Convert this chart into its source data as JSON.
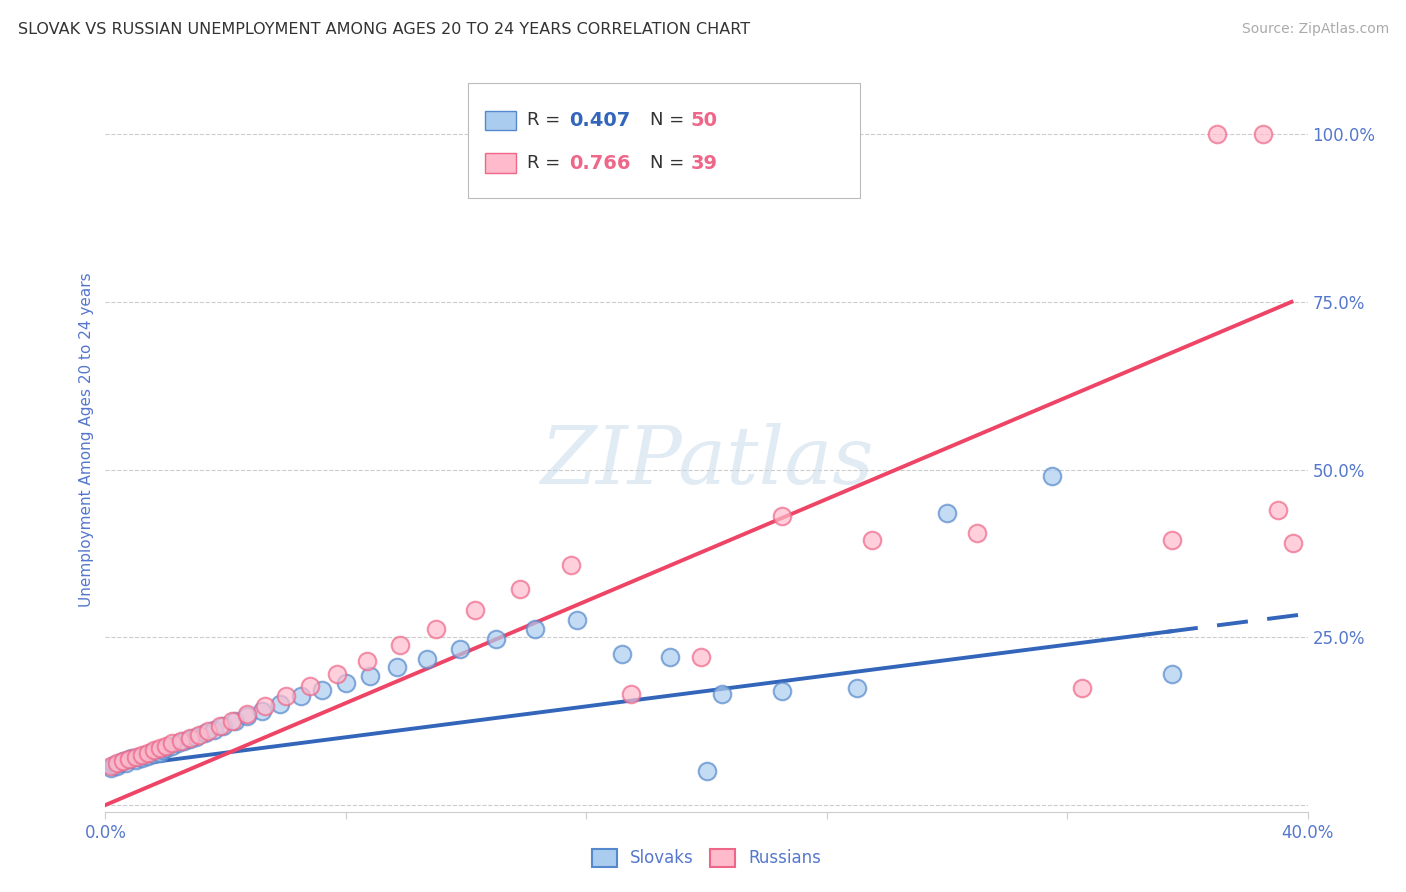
{
  "title": "SLOVAK VS RUSSIAN UNEMPLOYMENT AMONG AGES 20 TO 24 YEARS CORRELATION CHART",
  "source": "Source: ZipAtlas.com",
  "ylabel": "Unemployment Among Ages 20 to 24 years",
  "xlim": [
    0.0,
    0.4
  ],
  "ylim": [
    -0.01,
    1.1
  ],
  "xticks": [
    0.0,
    0.08,
    0.16,
    0.24,
    0.32,
    0.4
  ],
  "yticks": [
    0.0,
    0.25,
    0.5,
    0.75,
    1.0
  ],
  "xticklabels": [
    "0.0%",
    "",
    "",
    "",
    "",
    "40.0%"
  ],
  "yticklabels": [
    "",
    "25.0%",
    "50.0%",
    "75.0%",
    "100.0%"
  ],
  "tick_label_color": "#5577cc",
  "grid_color": "#cccccc",
  "background_color": "#ffffff",
  "slovaks_fill": "#aaccee",
  "slovaks_edge": "#5588cc",
  "russians_fill": "#ffbbcc",
  "russians_edge": "#ee6688",
  "slovaks_line_color": "#3366bb",
  "russians_line_color": "#ee4466",
  "slovaks_R": "0.407",
  "slovaks_N": "50",
  "russians_R": "0.766",
  "russians_N": "39",
  "legend_label_slovaks": "Slovaks",
  "legend_label_russians": "Russians",
  "watermark_text": "ZIPatlas",
  "slovaks_x": [
    0.002,
    0.003,
    0.004,
    0.005,
    0.006,
    0.007,
    0.008,
    0.009,
    0.01,
    0.011,
    0.012,
    0.013,
    0.014,
    0.015,
    0.016,
    0.017,
    0.018,
    0.019,
    0.02,
    0.022,
    0.024,
    0.026,
    0.028,
    0.03,
    0.033,
    0.036,
    0.039,
    0.043,
    0.047,
    0.052,
    0.058,
    0.065,
    0.072,
    0.08,
    0.088,
    0.097,
    0.107,
    0.118,
    0.13,
    0.143,
    0.157,
    0.172,
    0.188,
    0.205,
    0.225,
    0.25,
    0.28,
    0.315,
    0.355,
    0.2
  ],
  "slovaks_y": [
    0.055,
    0.06,
    0.058,
    0.062,
    0.065,
    0.063,
    0.068,
    0.07,
    0.067,
    0.072,
    0.07,
    0.075,
    0.073,
    0.078,
    0.076,
    0.08,
    0.078,
    0.082,
    0.085,
    0.088,
    0.092,
    0.095,
    0.098,
    0.102,
    0.108,
    0.112,
    0.118,
    0.125,
    0.132,
    0.14,
    0.15,
    0.162,
    0.172,
    0.182,
    0.192,
    0.205,
    0.218,
    0.232,
    0.248,
    0.262,
    0.275,
    0.225,
    0.22,
    0.165,
    0.17,
    0.175,
    0.435,
    0.49,
    0.195,
    0.05
  ],
  "russians_x": [
    0.002,
    0.004,
    0.006,
    0.008,
    0.01,
    0.012,
    0.014,
    0.016,
    0.018,
    0.02,
    0.022,
    0.025,
    0.028,
    0.031,
    0.034,
    0.038,
    0.042,
    0.047,
    0.053,
    0.06,
    0.068,
    0.077,
    0.087,
    0.098,
    0.11,
    0.123,
    0.138,
    0.155,
    0.175,
    0.198,
    0.225,
    0.255,
    0.29,
    0.325,
    0.355,
    0.37,
    0.385,
    0.39,
    0.395
  ],
  "russians_y": [
    0.058,
    0.062,
    0.065,
    0.068,
    0.072,
    0.075,
    0.078,
    0.082,
    0.085,
    0.088,
    0.092,
    0.095,
    0.1,
    0.105,
    0.11,
    0.118,
    0.125,
    0.135,
    0.148,
    0.162,
    0.178,
    0.195,
    0.215,
    0.238,
    0.262,
    0.29,
    0.322,
    0.358,
    0.165,
    0.22,
    0.43,
    0.395,
    0.405,
    0.175,
    0.395,
    1.0,
    1.0,
    0.44,
    0.39
  ]
}
